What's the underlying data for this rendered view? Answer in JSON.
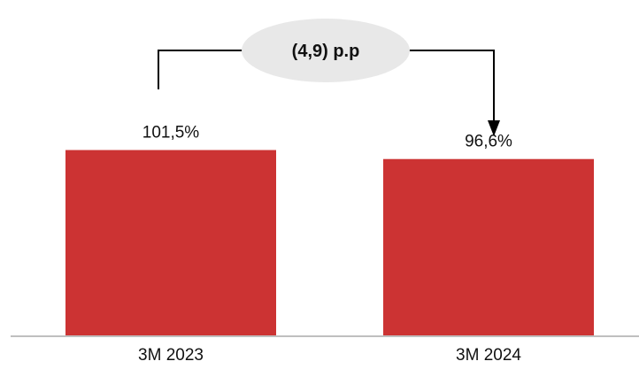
{
  "chart_data": {
    "type": "bar",
    "categories": [
      "3M 2023",
      "3M 2024"
    ],
    "values": [
      101.5,
      96.6
    ],
    "data_labels": [
      "101,5%",
      "96,6%"
    ],
    "title": "",
    "xlabel": "",
    "ylabel": "",
    "ylim": [
      0,
      150
    ],
    "grid": false,
    "legend": "none",
    "bar_color": "#cc3333",
    "annotation": {
      "text": "(4,9) p.p",
      "from_category": "3M 2023",
      "to_category": "3M 2024"
    }
  }
}
